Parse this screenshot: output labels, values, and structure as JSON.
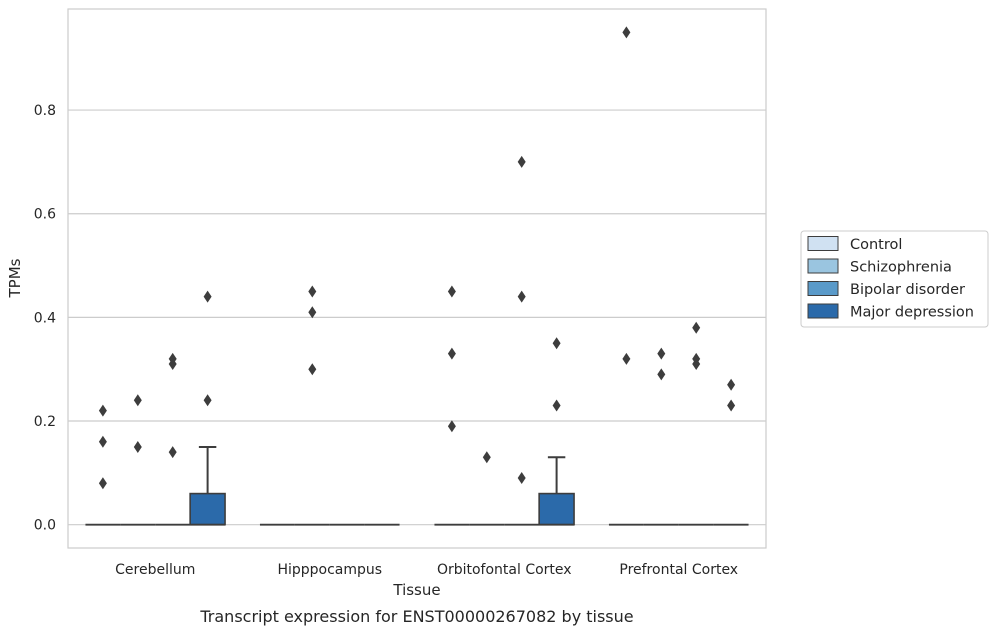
{
  "caption": "Transcript expression for ENST00000267082 by tissue",
  "chart_data": {
    "type": "box",
    "xlabel": "Tissue",
    "ylabel": "TPMs",
    "ylim": [
      -0.045,
      0.995
    ],
    "yticks": [
      0.0,
      0.2,
      0.4,
      0.6,
      0.8
    ],
    "ytick_labels": [
      "0.0",
      "0.2",
      "0.4",
      "0.6",
      "0.8"
    ],
    "grid": "horizontal",
    "legend_position": "right",
    "categories": [
      "Cerebellum",
      "Hipppocampus",
      "Orbitofontal Cortex",
      "Prefrontal Cortex"
    ],
    "series": [
      {
        "name": "Control",
        "color": "#d0e1f2",
        "boxes": [
          {
            "q1": 0,
            "median": 0,
            "q3": 0,
            "whisker_low": 0,
            "whisker_high": 0,
            "outliers": [
              0.08,
              0.16,
              0.22
            ]
          },
          {
            "q1": 0,
            "median": 0,
            "q3": 0,
            "whisker_low": 0,
            "whisker_high": 0,
            "outliers": []
          },
          {
            "q1": 0,
            "median": 0,
            "q3": 0,
            "whisker_low": 0,
            "whisker_high": 0,
            "outliers": [
              0.19,
              0.33,
              0.45
            ]
          },
          {
            "q1": 0,
            "median": 0,
            "q3": 0,
            "whisker_low": 0,
            "whisker_high": 0,
            "outliers": [
              0.32,
              0.95
            ]
          }
        ]
      },
      {
        "name": "Schizophrenia",
        "color": "#9ac5e0",
        "boxes": [
          {
            "q1": 0,
            "median": 0,
            "q3": 0,
            "whisker_low": 0,
            "whisker_high": 0,
            "outliers": [
              0.15,
              0.24
            ]
          },
          {
            "q1": 0,
            "median": 0,
            "q3": 0,
            "whisker_low": 0,
            "whisker_high": 0,
            "outliers": [
              0.3,
              0.41,
              0.45
            ]
          },
          {
            "q1": 0,
            "median": 0,
            "q3": 0,
            "whisker_low": 0,
            "whisker_high": 0,
            "outliers": [
              0.13
            ]
          },
          {
            "q1": 0,
            "median": 0,
            "q3": 0,
            "whisker_low": 0,
            "whisker_high": 0,
            "outliers": [
              0.29,
              0.33
            ]
          }
        ]
      },
      {
        "name": "Bipolar disorder",
        "color": "#5a9ac9",
        "boxes": [
          {
            "q1": 0,
            "median": 0,
            "q3": 0,
            "whisker_low": 0,
            "whisker_high": 0,
            "outliers": [
              0.14,
              0.31,
              0.32
            ]
          },
          {
            "q1": 0,
            "median": 0,
            "q3": 0,
            "whisker_low": 0,
            "whisker_high": 0,
            "outliers": []
          },
          {
            "q1": 0,
            "median": 0,
            "q3": 0,
            "whisker_low": 0,
            "whisker_high": 0,
            "outliers": [
              0.09,
              0.44,
              0.7
            ]
          },
          {
            "q1": 0,
            "median": 0,
            "q3": 0,
            "whisker_low": 0,
            "whisker_high": 0,
            "outliers": [
              0.31,
              0.32,
              0.38
            ]
          }
        ]
      },
      {
        "name": "Major depression",
        "color": "#2b6aaa",
        "boxes": [
          {
            "q1": 0,
            "median": 0,
            "q3": 0.06,
            "whisker_low": 0,
            "whisker_high": 0.15,
            "outliers": [
              0.24,
              0.44
            ]
          },
          {
            "q1": 0,
            "median": 0,
            "q3": 0,
            "whisker_low": 0,
            "whisker_high": 0,
            "outliers": []
          },
          {
            "q1": 0,
            "median": 0,
            "q3": 0.06,
            "whisker_low": 0,
            "whisker_high": 0.13,
            "outliers": [
              0.23,
              0.35
            ]
          },
          {
            "q1": 0,
            "median": 0,
            "q3": 0,
            "whisker_low": 0,
            "whisker_high": 0,
            "outliers": [
              0.23,
              0.27
            ]
          }
        ]
      }
    ]
  }
}
